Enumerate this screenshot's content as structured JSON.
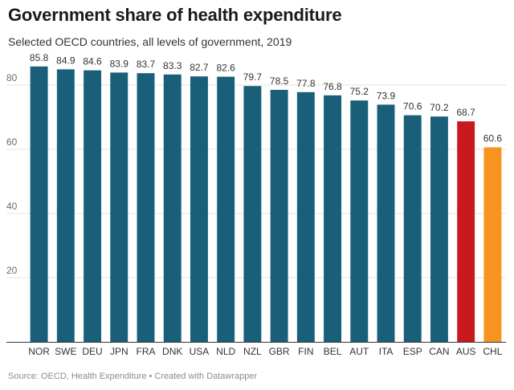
{
  "title": "Government share of health expenditure",
  "subtitle": "Selected OECD countries, all levels of government, 2019",
  "source": "Source: OECD, Health Expenditure • Created with Datawrapper",
  "colors": {
    "default": "#1a5f7a",
    "highlight_aus": "#c8191e",
    "highlight_chl": "#f7931e",
    "grid": "#e3e3e3",
    "axis": "#333333"
  },
  "chart_data": {
    "type": "bar",
    "title": "Government share of health expenditure",
    "subtitle": "Selected OECD countries, all levels of government, 2019",
    "xlabel": "",
    "ylabel": "",
    "ylim": [
      0,
      90
    ],
    "yticks": [
      20,
      40,
      60,
      80
    ],
    "grid": true,
    "categories": [
      "NOR",
      "SWE",
      "DEU",
      "JPN",
      "FRA",
      "DNK",
      "USA",
      "NLD",
      "NZL",
      "GBR",
      "FIN",
      "BEL",
      "AUT",
      "ITA",
      "ESP",
      "CAN",
      "AUS",
      "CHL"
    ],
    "values": [
      85.8,
      84.9,
      84.6,
      83.9,
      83.7,
      83.3,
      82.7,
      82.6,
      79.7,
      78.5,
      77.8,
      76.8,
      75.2,
      73.9,
      70.6,
      70.2,
      68.7,
      60.6
    ],
    "value_labels": [
      "85.8",
      "84.9",
      "84.6",
      "83.9",
      "83.7",
      "83.3",
      "82.7",
      "82.6",
      "79.7",
      "78.5",
      "77.8",
      "76.8",
      "75.2",
      "73.9",
      "70.6",
      "70.2",
      "68.7",
      "60.6"
    ],
    "bar_colors": [
      "#1a5f7a",
      "#1a5f7a",
      "#1a5f7a",
      "#1a5f7a",
      "#1a5f7a",
      "#1a5f7a",
      "#1a5f7a",
      "#1a5f7a",
      "#1a5f7a",
      "#1a5f7a",
      "#1a5f7a",
      "#1a5f7a",
      "#1a5f7a",
      "#1a5f7a",
      "#1a5f7a",
      "#1a5f7a",
      "#c8191e",
      "#f7931e"
    ]
  }
}
